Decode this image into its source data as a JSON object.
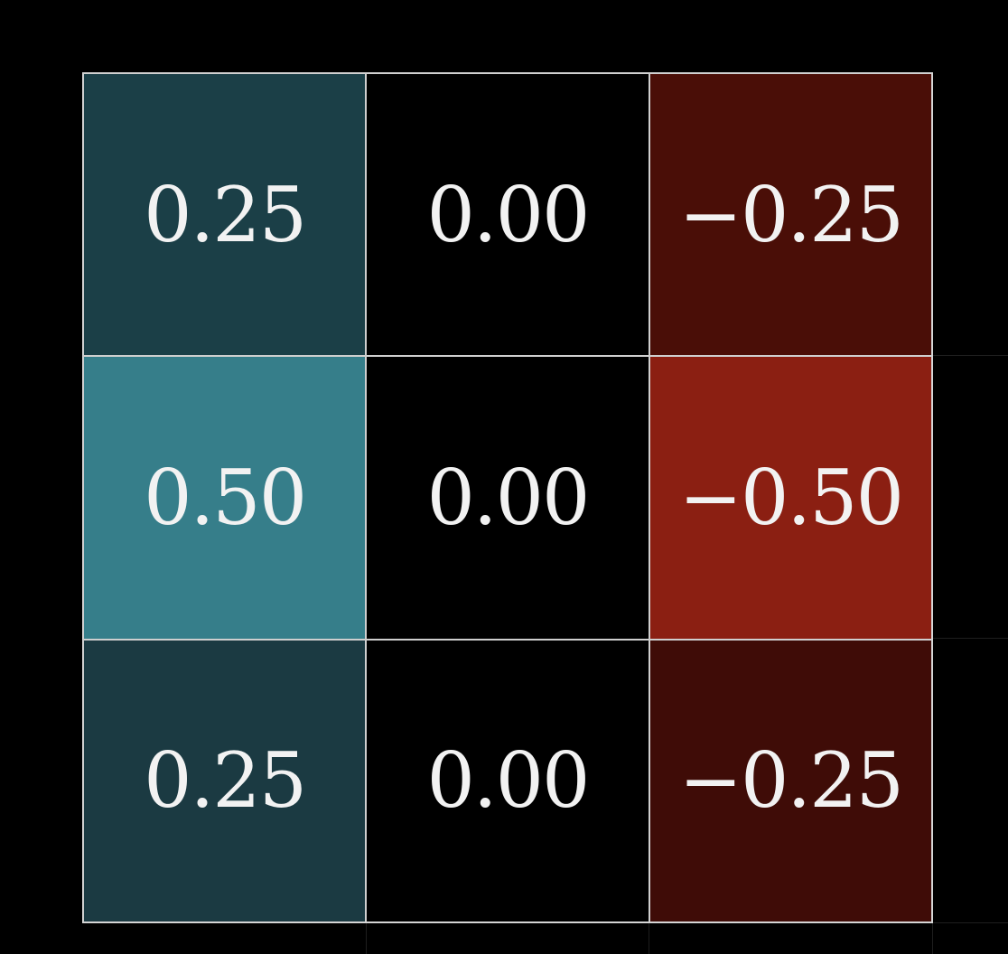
{
  "matrix": {
    "rows": [
      [
        {
          "label": "0.25",
          "value": 0.25,
          "color": "#1b3f47"
        },
        {
          "label": "0.00",
          "value": 0.0,
          "color": "#000000"
        },
        {
          "label": "−0.25",
          "value": -0.25,
          "color": "#4a0e07"
        }
      ],
      [
        {
          "label": "0.50",
          "value": 0.5,
          "color": "#367e8a"
        },
        {
          "label": "0.00",
          "value": 0.0,
          "color": "#000000"
        },
        {
          "label": "−0.50",
          "value": -0.5,
          "color": "#8b1f12"
        }
      ],
      [
        {
          "label": "0.25",
          "value": 0.25,
          "color": "#1b3a42"
        },
        {
          "label": "0.00",
          "value": 0.0,
          "color": "#000000"
        },
        {
          "label": "−0.25",
          "value": -0.25,
          "color": "#3f0c07"
        }
      ]
    ],
    "colors": {
      "background": "#000000",
      "border": "#d8d8d8",
      "text": "#f2f2f2"
    }
  }
}
